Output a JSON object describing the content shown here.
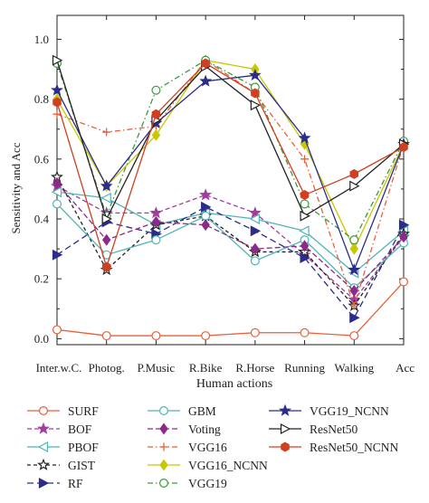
{
  "chart_data": {
    "type": "line",
    "title": "",
    "xlabel": "Human actions",
    "ylabel": "Sensitivity and Acc",
    "categories": [
      "Inter.w.C.",
      "Photog.",
      "P.Music",
      "R.Bike",
      "R.Horse",
      "Running",
      "Walking",
      "Acc"
    ],
    "ylim": [
      -0.02,
      1.08
    ],
    "yticks": [
      "0.0",
      "0.2",
      "0.4",
      "0.6",
      "0.8",
      "1.0"
    ],
    "grid": false,
    "legend_position": "bottom",
    "series": [
      {
        "name": "SURF",
        "color": "#e8603c",
        "dash": "",
        "marker": "circle-open",
        "values": [
          0.03,
          0.01,
          0.01,
          0.01,
          0.02,
          0.02,
          0.01,
          0.19
        ]
      },
      {
        "name": "BOF",
        "color": "#a23d9e",
        "dash": "5,3",
        "marker": "star-filled",
        "values": [
          0.51,
          0.42,
          0.42,
          0.48,
          0.42,
          0.28,
          0.13,
          0.34
        ]
      },
      {
        "name": "PBOF",
        "color": "#4fb5b5",
        "dash": "",
        "marker": "triangle-left-open",
        "values": [
          0.49,
          0.47,
          0.38,
          0.42,
          0.4,
          0.36,
          0.22,
          0.36
        ]
      },
      {
        "name": "GIST",
        "color": "#222222",
        "dash": "4,3",
        "marker": "star-open",
        "values": [
          0.54,
          0.23,
          0.38,
          0.41,
          0.29,
          0.29,
          0.11,
          0.35
        ]
      },
      {
        "name": "RF",
        "color": "#2c2c8a",
        "dash": "7,4",
        "marker": "triangle-right-filled",
        "values": [
          0.28,
          0.39,
          0.35,
          0.44,
          0.36,
          0.27,
          0.07,
          0.38
        ]
      },
      {
        "name": "GBM",
        "color": "#4fb5b5",
        "dash": "",
        "marker": "circle-open",
        "values": [
          0.45,
          0.28,
          0.33,
          0.41,
          0.26,
          0.33,
          0.17,
          0.32
        ]
      },
      {
        "name": "Voting",
        "color": "#8b2a8b",
        "dash": "6,3",
        "marker": "diamond-filled",
        "values": [
          0.52,
          0.33,
          0.39,
          0.38,
          0.3,
          0.31,
          0.16,
          0.34
        ]
      },
      {
        "name": "VGG16",
        "color": "#e8603c",
        "dash": "6,3,1.5,3",
        "marker": "plus",
        "values": [
          0.75,
          0.69,
          0.71,
          0.93,
          0.82,
          0.6,
          0.11,
          0.65
        ]
      },
      {
        "name": "VGG16_NCNN",
        "color": "#c8c800",
        "dash": "",
        "marker": "diamond-filled",
        "values": [
          0.8,
          0.51,
          0.68,
          0.93,
          0.9,
          0.65,
          0.3,
          0.65
        ]
      },
      {
        "name": "VGG19",
        "color": "#3d9a3d",
        "dash": "6,3,1.5,3",
        "marker": "circle-open",
        "values": [
          0.92,
          0.41,
          0.83,
          0.93,
          0.84,
          0.45,
          0.33,
          0.66
        ]
      },
      {
        "name": "VGG19_NCNN",
        "color": "#2c2c8a",
        "dash": "",
        "marker": "star-filled",
        "values": [
          0.83,
          0.51,
          0.72,
          0.86,
          0.88,
          0.67,
          0.23,
          0.65
        ]
      },
      {
        "name": "ResNet50",
        "color": "#222222",
        "dash": "",
        "marker": "triangle-right-open",
        "values": [
          0.93,
          0.4,
          0.73,
          0.91,
          0.78,
          0.41,
          0.51,
          0.65
        ]
      },
      {
        "name": "ResNet50_NCNN",
        "color": "#d04020",
        "dash": "",
        "marker": "hexagon-filled",
        "values": [
          0.79,
          0.24,
          0.75,
          0.92,
          0.82,
          0.48,
          0.55,
          0.64
        ]
      }
    ]
  }
}
